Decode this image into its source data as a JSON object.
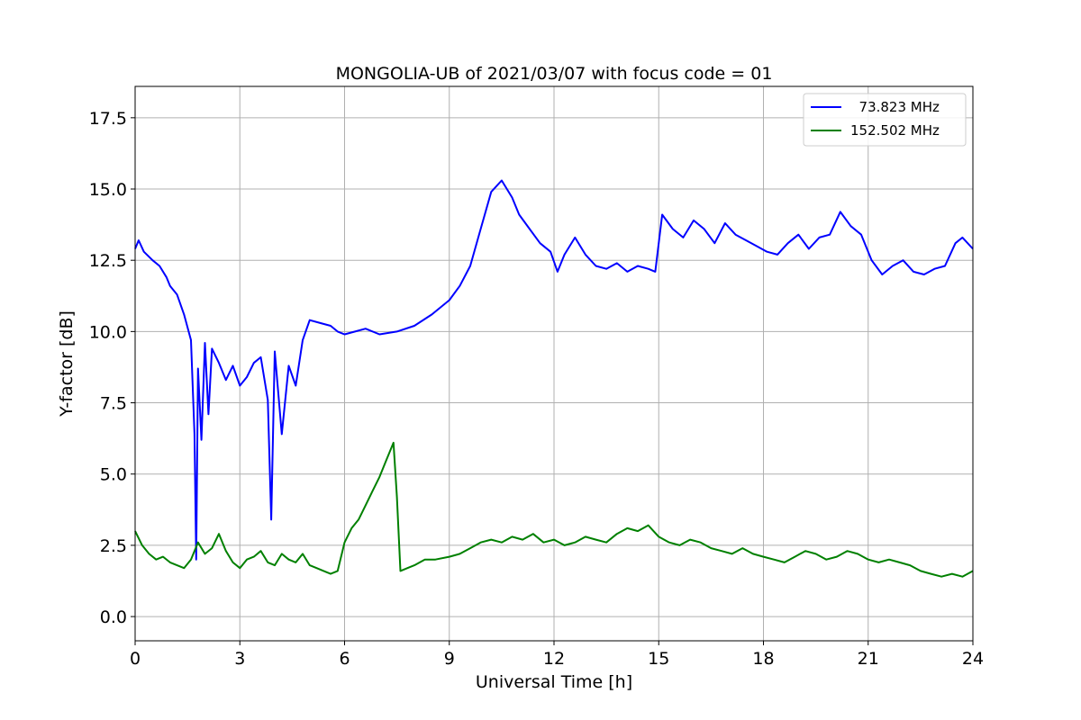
{
  "chart_data": {
    "type": "line",
    "title": "MONGOLIA-UB of 2021/03/07 with focus code = 01",
    "xlabel": "Universal Time [h]",
    "ylabel": "Y-factor [dB]",
    "xlim": [
      0,
      24
    ],
    "ylim": [
      -0.85,
      18.6
    ],
    "x_ticks": [
      0,
      3,
      6,
      9,
      12,
      15,
      18,
      21,
      24
    ],
    "x_tick_labels": [
      "0",
      "3",
      "6",
      "9",
      "12",
      "15",
      "18",
      "21",
      "24"
    ],
    "y_ticks": [
      0.0,
      2.5,
      5.0,
      7.5,
      10.0,
      12.5,
      15.0,
      17.5
    ],
    "y_tick_labels": [
      "0.0",
      "2.5",
      "5.0",
      "7.5",
      "10.0",
      "12.5",
      "15.0",
      "17.5"
    ],
    "grid": true,
    "legend_position": "top-right",
    "series": [
      {
        "name": "  73.823 MHz",
        "color": "#0000ff",
        "x": [
          0.0,
          0.1,
          0.25,
          0.5,
          0.7,
          0.9,
          1.0,
          1.2,
          1.4,
          1.6,
          1.7,
          1.75,
          1.8,
          1.9,
          2.0,
          2.1,
          2.2,
          2.4,
          2.6,
          2.8,
          3.0,
          3.2,
          3.4,
          3.6,
          3.8,
          3.9,
          4.0,
          4.2,
          4.4,
          4.6,
          4.8,
          5.0,
          5.3,
          5.6,
          5.8,
          6.0,
          6.3,
          6.6,
          7.0,
          7.5,
          8.0,
          8.5,
          9.0,
          9.3,
          9.6,
          9.9,
          10.2,
          10.5,
          10.8,
          11.0,
          11.3,
          11.6,
          11.9,
          12.1,
          12.3,
          12.6,
          12.9,
          13.2,
          13.5,
          13.8,
          14.1,
          14.4,
          14.7,
          14.9,
          15.1,
          15.4,
          15.7,
          16.0,
          16.3,
          16.6,
          16.9,
          17.2,
          17.5,
          17.8,
          18.1,
          18.4,
          18.7,
          19.0,
          19.3,
          19.6,
          19.9,
          20.2,
          20.5,
          20.8,
          21.1,
          21.4,
          21.7,
          22.0,
          22.3,
          22.6,
          22.9,
          23.2,
          23.5,
          23.7,
          24.0
        ],
        "y": [
          12.9,
          13.2,
          12.8,
          12.5,
          12.3,
          11.9,
          11.6,
          11.3,
          10.6,
          9.7,
          6.4,
          2.0,
          8.7,
          6.2,
          9.6,
          7.1,
          9.4,
          8.9,
          8.3,
          8.8,
          8.1,
          8.4,
          8.9,
          9.1,
          7.6,
          3.4,
          9.3,
          6.4,
          8.8,
          8.1,
          9.7,
          10.4,
          10.3,
          10.2,
          10.0,
          9.9,
          10.0,
          10.1,
          9.9,
          10.0,
          10.2,
          10.6,
          11.1,
          11.6,
          12.3,
          13.6,
          14.9,
          15.3,
          14.7,
          14.1,
          13.6,
          13.1,
          12.8,
          12.1,
          12.7,
          13.3,
          12.7,
          12.3,
          12.2,
          12.4,
          12.1,
          12.3,
          12.2,
          12.1,
          14.1,
          13.6,
          13.3,
          13.9,
          13.6,
          13.1,
          13.8,
          13.4,
          13.2,
          13.0,
          12.8,
          12.7,
          13.1,
          13.4,
          12.9,
          13.3,
          13.4,
          14.2,
          13.7,
          13.4,
          12.5,
          12.0,
          12.3,
          12.5,
          12.1,
          12.0,
          12.2,
          12.3,
          13.1,
          13.3,
          12.9
        ]
      },
      {
        "name": "152.502 MHz",
        "color": "#008000",
        "x": [
          0.0,
          0.2,
          0.4,
          0.6,
          0.8,
          1.0,
          1.2,
          1.4,
          1.6,
          1.8,
          2.0,
          2.2,
          2.4,
          2.6,
          2.8,
          3.0,
          3.2,
          3.4,
          3.6,
          3.8,
          4.0,
          4.2,
          4.4,
          4.6,
          4.8,
          5.0,
          5.2,
          5.4,
          5.6,
          5.8,
          6.0,
          6.2,
          6.4,
          6.6,
          6.8,
          7.0,
          7.2,
          7.4,
          7.5,
          7.6,
          7.8,
          8.0,
          8.3,
          8.6,
          9.0,
          9.3,
          9.6,
          9.9,
          10.2,
          10.5,
          10.8,
          11.1,
          11.4,
          11.7,
          12.0,
          12.3,
          12.6,
          12.9,
          13.2,
          13.5,
          13.8,
          14.1,
          14.4,
          14.7,
          15.0,
          15.3,
          15.6,
          15.9,
          16.2,
          16.5,
          16.8,
          17.1,
          17.4,
          17.7,
          18.0,
          18.3,
          18.6,
          18.9,
          19.2,
          19.5,
          19.8,
          20.1,
          20.4,
          20.7,
          21.0,
          21.3,
          21.6,
          21.9,
          22.2,
          22.5,
          22.8,
          23.1,
          23.4,
          23.7,
          24.0
        ],
        "y": [
          3.0,
          2.5,
          2.2,
          2.0,
          2.1,
          1.9,
          1.8,
          1.7,
          2.0,
          2.6,
          2.2,
          2.4,
          2.9,
          2.3,
          1.9,
          1.7,
          2.0,
          2.1,
          2.3,
          1.9,
          1.8,
          2.2,
          2.0,
          1.9,
          2.2,
          1.8,
          1.7,
          1.6,
          1.5,
          1.6,
          2.6,
          3.1,
          3.4,
          3.9,
          4.4,
          4.9,
          5.5,
          6.1,
          4.2,
          1.6,
          1.7,
          1.8,
          2.0,
          2.0,
          2.1,
          2.2,
          2.4,
          2.6,
          2.7,
          2.6,
          2.8,
          2.7,
          2.9,
          2.6,
          2.7,
          2.5,
          2.6,
          2.8,
          2.7,
          2.6,
          2.9,
          3.1,
          3.0,
          3.2,
          2.8,
          2.6,
          2.5,
          2.7,
          2.6,
          2.4,
          2.3,
          2.2,
          2.4,
          2.2,
          2.1,
          2.0,
          1.9,
          2.1,
          2.3,
          2.2,
          2.0,
          2.1,
          2.3,
          2.2,
          2.0,
          1.9,
          2.0,
          1.9,
          1.8,
          1.6,
          1.5,
          1.4,
          1.5,
          1.4,
          1.6
        ]
      }
    ]
  }
}
